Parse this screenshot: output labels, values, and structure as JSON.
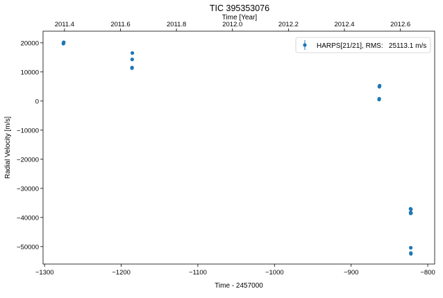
{
  "chart_data": {
    "type": "scatter",
    "title": "TIC 395353076",
    "xlabel": "Time - 2457000",
    "ylabel": "Radial Velocity [m/s]",
    "top_xlabel": "Time [Year]",
    "xlim": [
      -1302,
      -791
    ],
    "ylim": [
      -56000,
      24000
    ],
    "x_ticks": [
      -1300,
      -1200,
      -1100,
      -1000,
      -900,
      -800
    ],
    "x_tick_labels": [
      "−1300",
      "−1200",
      "−1100",
      "−1000",
      "−900",
      "−800"
    ],
    "y_ticks": [
      20000,
      10000,
      0,
      -10000,
      -20000,
      -30000,
      -40000,
      -50000
    ],
    "y_tick_labels": [
      "20000",
      "10000",
      "0",
      "−10000",
      "−20000",
      "−30000",
      "−40000",
      "−50000"
    ],
    "top_ticks": [
      2011.4,
      2011.6,
      2011.8,
      2012.0,
      2012.2,
      2012.4,
      2012.6
    ],
    "top_tick_labels": [
      "2011.4",
      "2011.6",
      "2011.8",
      "2012.0",
      "2012.2",
      "2012.4",
      "2012.6"
    ],
    "series": [
      {
        "name": "HARPS[21/21], RMS:   25113.1 m/s",
        "color": "#1f77b4",
        "points": [
          {
            "x": -1275.5,
            "y": 19700
          },
          {
            "x": -1275.3,
            "y": 19900
          },
          {
            "x": -1275.1,
            "y": 20100
          },
          {
            "x": -1275.0,
            "y": 20200
          },
          {
            "x": -1186.0,
            "y": 11300
          },
          {
            "x": -1185.8,
            "y": 11500
          },
          {
            "x": -1185.7,
            "y": 14300
          },
          {
            "x": -1185.5,
            "y": 16500
          },
          {
            "x": -863.5,
            "y": 500
          },
          {
            "x": -863.3,
            "y": 800
          },
          {
            "x": -863.2,
            "y": 4900
          },
          {
            "x": -863.0,
            "y": 5100
          },
          {
            "x": -862.8,
            "y": 5300
          },
          {
            "x": -822.5,
            "y": -37000
          },
          {
            "x": -822.4,
            "y": -38300
          },
          {
            "x": -822.3,
            "y": -38600
          },
          {
            "x": -822.2,
            "y": -50400
          },
          {
            "x": -822.1,
            "y": -52200
          },
          {
            "x": -822.0,
            "y": -52500
          },
          {
            "x": -821.9,
            "y": -37200
          },
          {
            "x": -821.8,
            "y": -38500
          }
        ]
      }
    ],
    "legend_location": "top-right",
    "grid": false
  }
}
